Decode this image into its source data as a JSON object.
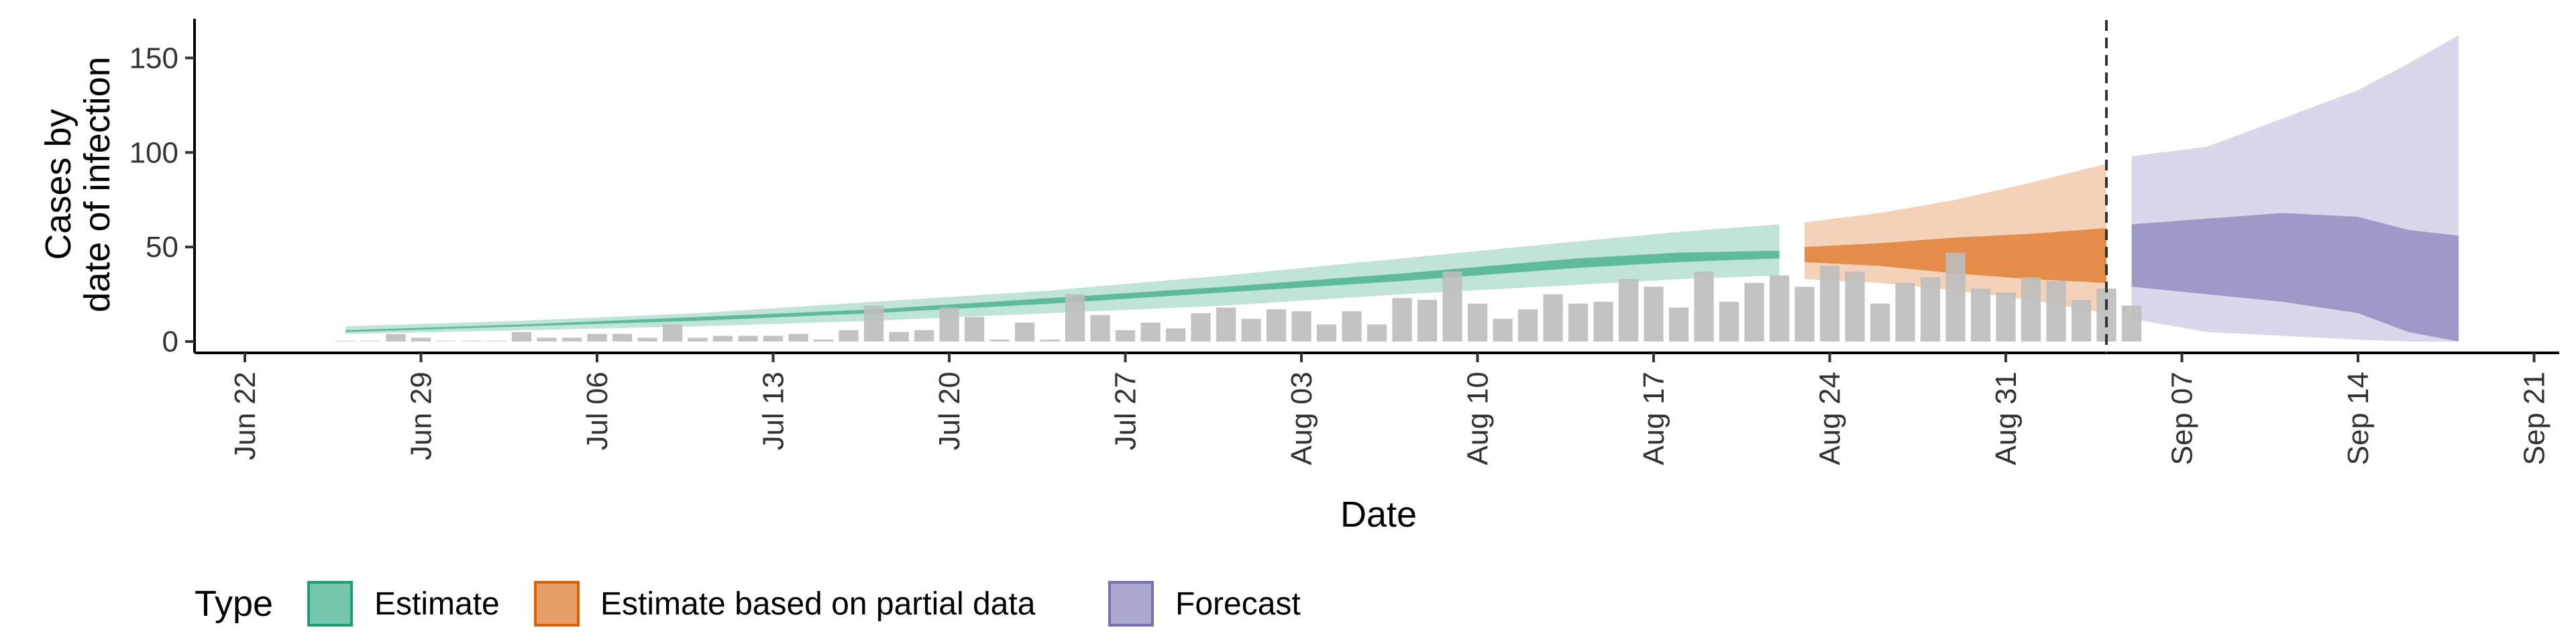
{
  "chart_data": {
    "type": "area",
    "xlabel": "Date",
    "ylabel": [
      "Cases by",
      "date of infection"
    ],
    "ylim": [
      -6,
      170
    ],
    "xlim": [
      "2020-06-20",
      "2020-09-22"
    ],
    "x_ticks": [
      {
        "date": "2020-06-22",
        "label": "Jun 22"
      },
      {
        "date": "2020-06-29",
        "label": "Jun 29"
      },
      {
        "date": "2020-07-06",
        "label": "Jul 06"
      },
      {
        "date": "2020-07-13",
        "label": "Jul 13"
      },
      {
        "date": "2020-07-20",
        "label": "Jul 20"
      },
      {
        "date": "2020-07-27",
        "label": "Jul 27"
      },
      {
        "date": "2020-08-03",
        "label": "Aug 03"
      },
      {
        "date": "2020-08-10",
        "label": "Aug 10"
      },
      {
        "date": "2020-08-17",
        "label": "Aug 17"
      },
      {
        "date": "2020-08-24",
        "label": "Aug 24"
      },
      {
        "date": "2020-08-31",
        "label": "Aug 31"
      },
      {
        "date": "2020-09-07",
        "label": "Sep 07"
      },
      {
        "date": "2020-09-14",
        "label": "Sep 14"
      },
      {
        "date": "2020-09-21",
        "label": "Sep 21"
      }
    ],
    "y_ticks": [
      0,
      50,
      100,
      150
    ],
    "forecast_line_date": "2020-09-04",
    "legend": {
      "title": "Type",
      "position": "bottom",
      "items": [
        {
          "label": "Estimate",
          "color": "#1B9E77"
        },
        {
          "label": "Estimate based on partial data",
          "color": "#D95F02"
        },
        {
          "label": "Forecast",
          "color": "#7570B3"
        }
      ]
    },
    "bars": {
      "color": "#BDBDBD",
      "start_date": "2020-06-26",
      "values": [
        0,
        0,
        4,
        2,
        0,
        0,
        0,
        5,
        2,
        2,
        4,
        4,
        2,
        9,
        2,
        3,
        3,
        3,
        4,
        1,
        6,
        19,
        5,
        6,
        18,
        13,
        1,
        10,
        1,
        25,
        14,
        6,
        10,
        7,
        15,
        18,
        12,
        17,
        16,
        9,
        16,
        9,
        23,
        22,
        37,
        20,
        12,
        17,
        25,
        20,
        21,
        33,
        29,
        18,
        37,
        21,
        31,
        35,
        29,
        40,
        37,
        20,
        31,
        34,
        47,
        28,
        26,
        34,
        32,
        22,
        28,
        19
      ]
    },
    "series": [
      {
        "name": "Estimate",
        "color": "#1B9E77",
        "x": [
          "2020-06-26",
          "2020-07-03",
          "2020-07-10",
          "2020-07-17",
          "2020-07-24",
          "2020-07-31",
          "2020-08-07",
          "2020-08-14",
          "2020-08-18",
          "2020-08-22"
        ],
        "outer_lower": [
          4,
          6,
          8,
          11,
          15,
          19,
          25,
          30,
          33,
          35
        ],
        "inner_lower": [
          5,
          8,
          11,
          15,
          20,
          26,
          32,
          39,
          42,
          44
        ],
        "inner_upper": [
          6,
          9,
          13,
          17,
          23,
          29,
          36,
          44,
          47,
          48
        ],
        "outer_upper": [
          8,
          11,
          15,
          21,
          27,
          35,
          44,
          53,
          58,
          62
        ]
      },
      {
        "name": "Estimate based on partial data",
        "color": "#D95F02",
        "x": [
          "2020-08-23",
          "2020-08-26",
          "2020-08-29",
          "2020-09-01",
          "2020-09-04"
        ],
        "outer_lower": [
          33,
          31,
          27,
          22,
          15
        ],
        "inner_lower": [
          42,
          40,
          36,
          33,
          31
        ],
        "inner_upper": [
          50,
          52,
          55,
          57,
          60
        ],
        "outer_upper": [
          63,
          68,
          75,
          84,
          94
        ]
      },
      {
        "name": "Forecast",
        "color": "#7570B3",
        "x": [
          "2020-09-05",
          "2020-09-08",
          "2020-09-11",
          "2020-09-14",
          "2020-09-16",
          "2020-09-18"
        ],
        "outer_lower": [
          12,
          5,
          3,
          1,
          0,
          0
        ],
        "inner_lower": [
          29,
          25,
          21,
          15,
          5,
          0
        ],
        "inner_upper": [
          62,
          65,
          68,
          66,
          59,
          56
        ],
        "outer_upper": [
          98,
          103,
          118,
          133,
          147,
          162
        ]
      }
    ]
  }
}
